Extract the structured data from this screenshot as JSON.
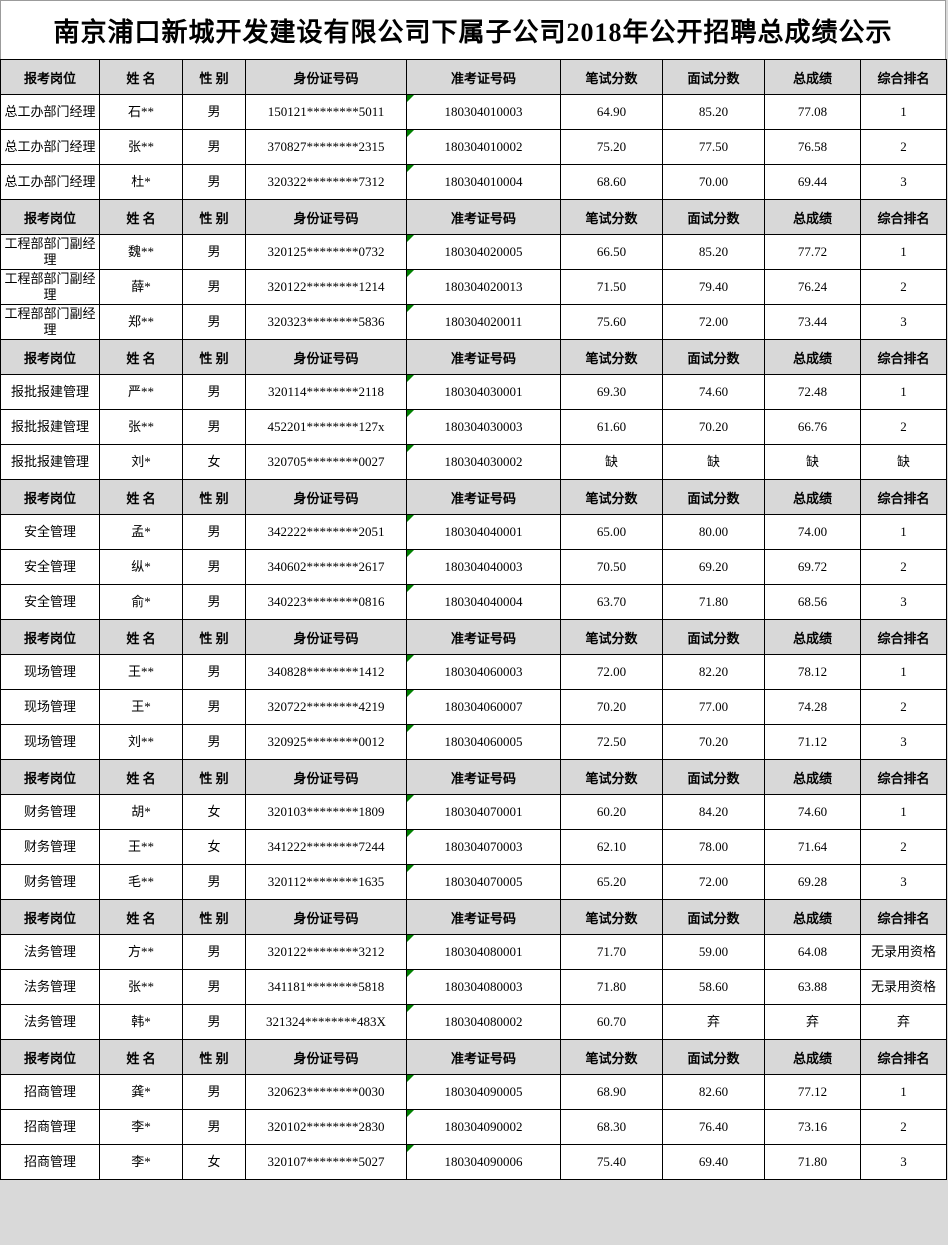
{
  "title": "南京浦口新城开发建设有限公司下属子公司2018年公开招聘总成绩公示",
  "columns": [
    "报考岗位",
    "姓 名",
    "性 别",
    "身份证号码",
    "准考证号码",
    "笔试分数",
    "面试分数",
    "总成绩",
    "综合排名"
  ],
  "colors": {
    "header_background": "#d8d8d8",
    "cell_background": "#ffffff",
    "grid_border": "#000000",
    "triangle_marker": "#008000",
    "page_background": "#d9d9d9"
  },
  "icons": {
    "exam_number_marker": "green-triangle"
  },
  "sections": [
    {
      "rows": [
        {
          "position": "总工办部门经理",
          "name": "石**",
          "gender": "男",
          "id_number": "150121********5011",
          "exam_number": "180304010003",
          "written_score": "64.90",
          "interview_score": "85.20",
          "total_score": "77.08",
          "rank": "1"
        },
        {
          "position": "总工办部门经理",
          "name": "张**",
          "gender": "男",
          "id_number": "370827********2315",
          "exam_number": "180304010002",
          "written_score": "75.20",
          "interview_score": "77.50",
          "total_score": "76.58",
          "rank": "2"
        },
        {
          "position": "总工办部门经理",
          "name": "杜*",
          "gender": "男",
          "id_number": "320322********7312",
          "exam_number": "180304010004",
          "written_score": "68.60",
          "interview_score": "70.00",
          "total_score": "69.44",
          "rank": "3"
        }
      ]
    },
    {
      "rows": [
        {
          "position": "工程部部门副经理",
          "name": "魏**",
          "gender": "男",
          "id_number": "320125********0732",
          "exam_number": "180304020005",
          "written_score": "66.50",
          "interview_score": "85.20",
          "total_score": "77.72",
          "rank": "1"
        },
        {
          "position": "工程部部门副经理",
          "name": "薛*",
          "gender": "男",
          "id_number": "320122********1214",
          "exam_number": "180304020013",
          "written_score": "71.50",
          "interview_score": "79.40",
          "total_score": "76.24",
          "rank": "2"
        },
        {
          "position": "工程部部门副经理",
          "name": "郑**",
          "gender": "男",
          "id_number": "320323********5836",
          "exam_number": "180304020011",
          "written_score": "75.60",
          "interview_score": "72.00",
          "total_score": "73.44",
          "rank": "3"
        }
      ]
    },
    {
      "rows": [
        {
          "position": "报批报建管理",
          "name": "严**",
          "gender": "男",
          "id_number": "320114********2118",
          "exam_number": "180304030001",
          "written_score": "69.30",
          "interview_score": "74.60",
          "total_score": "72.48",
          "rank": "1"
        },
        {
          "position": "报批报建管理",
          "name": "张**",
          "gender": "男",
          "id_number": "452201********127x",
          "exam_number": "180304030003",
          "written_score": "61.60",
          "interview_score": "70.20",
          "total_score": "66.76",
          "rank": "2"
        },
        {
          "position": "报批报建管理",
          "name": "刘*",
          "gender": "女",
          "id_number": "320705********0027",
          "exam_number": "180304030002",
          "written_score": "缺",
          "interview_score": "缺",
          "total_score": "缺",
          "rank": "缺"
        }
      ]
    },
    {
      "rows": [
        {
          "position": "安全管理",
          "name": "孟*",
          "gender": "男",
          "id_number": "342222********2051",
          "exam_number": "180304040001",
          "written_score": "65.00",
          "interview_score": "80.00",
          "total_score": "74.00",
          "rank": "1"
        },
        {
          "position": "安全管理",
          "name": "纵*",
          "gender": "男",
          "id_number": "340602********2617",
          "exam_number": "180304040003",
          "written_score": "70.50",
          "interview_score": "69.20",
          "total_score": "69.72",
          "rank": "2"
        },
        {
          "position": "安全管理",
          "name": "俞*",
          "gender": "男",
          "id_number": "340223********0816",
          "exam_number": "180304040004",
          "written_score": "63.70",
          "interview_score": "71.80",
          "total_score": "68.56",
          "rank": "3"
        }
      ]
    },
    {
      "rows": [
        {
          "position": "现场管理",
          "name": "王**",
          "gender": "男",
          "id_number": "340828********1412",
          "exam_number": "180304060003",
          "written_score": "72.00",
          "interview_score": "82.20",
          "total_score": "78.12",
          "rank": "1"
        },
        {
          "position": "现场管理",
          "name": "王*",
          "gender": "男",
          "id_number": "320722********4219",
          "exam_number": "180304060007",
          "written_score": "70.20",
          "interview_score": "77.00",
          "total_score": "74.28",
          "rank": "2"
        },
        {
          "position": "现场管理",
          "name": "刘**",
          "gender": "男",
          "id_number": "320925********0012",
          "exam_number": "180304060005",
          "written_score": "72.50",
          "interview_score": "70.20",
          "total_score": "71.12",
          "rank": "3"
        }
      ]
    },
    {
      "rows": [
        {
          "position": "财务管理",
          "name": "胡*",
          "gender": "女",
          "id_number": "320103********1809",
          "exam_number": "180304070001",
          "written_score": "60.20",
          "interview_score": "84.20",
          "total_score": "74.60",
          "rank": "1"
        },
        {
          "position": "财务管理",
          "name": "王**",
          "gender": "女",
          "id_number": "341222********7244",
          "exam_number": "180304070003",
          "written_score": "62.10",
          "interview_score": "78.00",
          "total_score": "71.64",
          "rank": "2"
        },
        {
          "position": "财务管理",
          "name": "毛**",
          "gender": "男",
          "id_number": "320112********1635",
          "exam_number": "180304070005",
          "written_score": "65.20",
          "interview_score": "72.00",
          "total_score": "69.28",
          "rank": "3"
        }
      ]
    },
    {
      "rows": [
        {
          "position": "法务管理",
          "name": "方**",
          "gender": "男",
          "id_number": "320122********3212",
          "exam_number": "180304080001",
          "written_score": "71.70",
          "interview_score": "59.00",
          "total_score": "64.08",
          "rank": "无录用资格"
        },
        {
          "position": "法务管理",
          "name": "张**",
          "gender": "男",
          "id_number": "341181********5818",
          "exam_number": "180304080003",
          "written_score": "71.80",
          "interview_score": "58.60",
          "total_score": "63.88",
          "rank": "无录用资格"
        },
        {
          "position": "法务管理",
          "name": "韩*",
          "gender": "男",
          "id_number": "321324********483X",
          "exam_number": "180304080002",
          "written_score": "60.70",
          "interview_score": "弃",
          "total_score": "弃",
          "rank": "弃"
        }
      ]
    },
    {
      "rows": [
        {
          "position": "招商管理",
          "name": "龚*",
          "gender": "男",
          "id_number": "320623********0030",
          "exam_number": "180304090005",
          "written_score": "68.90",
          "interview_score": "82.60",
          "total_score": "77.12",
          "rank": "1"
        },
        {
          "position": "招商管理",
          "name": "李*",
          "gender": "男",
          "id_number": "320102********2830",
          "exam_number": "180304090002",
          "written_score": "68.30",
          "interview_score": "76.40",
          "total_score": "73.16",
          "rank": "2"
        },
        {
          "position": "招商管理",
          "name": "李*",
          "gender": "女",
          "id_number": "320107********5027",
          "exam_number": "180304090006",
          "written_score": "75.40",
          "interview_score": "69.40",
          "total_score": "71.80",
          "rank": "3"
        }
      ]
    }
  ]
}
